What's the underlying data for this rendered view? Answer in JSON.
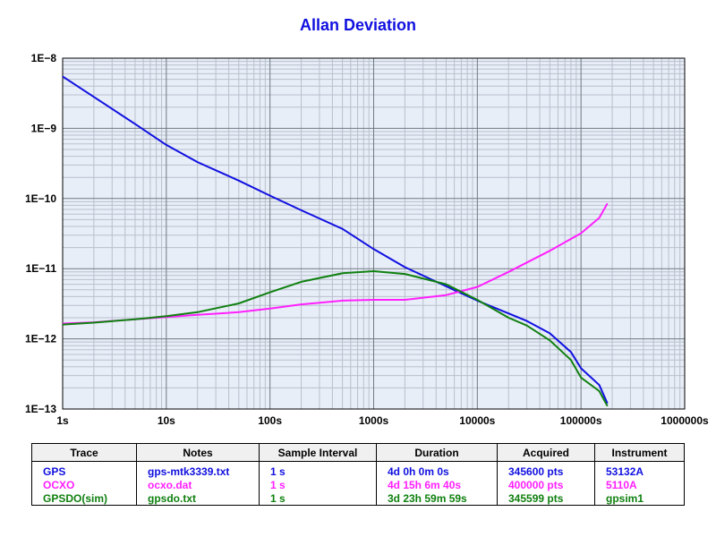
{
  "chart_data": {
    "type": "line",
    "title": "Allan Deviation",
    "xlabel": "",
    "ylabel": "",
    "x_scale": "log",
    "y_scale": "log",
    "xlim": [
      1,
      1000000
    ],
    "ylim": [
      1e-13,
      1e-08
    ],
    "grid": true,
    "x_ticks": [
      "1s",
      "10s",
      "100s",
      "1000s",
      "10000s",
      "100000s",
      "1000000s"
    ],
    "y_ticks": [
      "1E−13",
      "1E−12",
      "1E−11",
      "1E−10",
      "1E−9",
      "1E−8"
    ],
    "series": [
      {
        "name": "GPS",
        "color": "#1010e0",
        "x": [
          1,
          2,
          5,
          10,
          20,
          50,
          100,
          200,
          500,
          1000,
          2000,
          5000,
          10000,
          20000,
          30000,
          50000,
          80000,
          100000,
          150000,
          180000
        ],
        "y": [
          5.5e-09,
          2.8e-09,
          1.15e-09,
          5.8e-10,
          3.3e-10,
          1.8e-10,
          1.1e-10,
          6.8e-11,
          3.7e-11,
          1.9e-11,
          1.05e-11,
          5.6e-12,
          3.5e-12,
          2.3e-12,
          1.8e-12,
          1.2e-12,
          6.5e-13,
          3.8e-13,
          2.2e-13,
          1.2e-13
        ]
      },
      {
        "name": "OCXO",
        "color": "#ff20ff",
        "x": [
          1,
          2,
          5,
          10,
          20,
          50,
          100,
          200,
          500,
          1000,
          2000,
          5000,
          10000,
          20000,
          50000,
          100000,
          150000,
          180000
        ],
        "y": [
          1.65e-12,
          1.72e-12,
          1.9e-12,
          2.05e-12,
          2.2e-12,
          2.4e-12,
          2.7e-12,
          3.1e-12,
          3.5e-12,
          3.6e-12,
          3.6e-12,
          4.2e-12,
          5.5e-12,
          9e-12,
          1.8e-11,
          3.2e-11,
          5.3e-11,
          8.5e-11
        ]
      },
      {
        "name": "GPSDO(sim)",
        "color": "#108010",
        "x": [
          1,
          2,
          5,
          10,
          20,
          50,
          100,
          200,
          500,
          1000,
          2000,
          5000,
          10000,
          20000,
          30000,
          50000,
          80000,
          100000,
          150000,
          180000
        ],
        "y": [
          1.6e-12,
          1.7e-12,
          1.9e-12,
          2.1e-12,
          2.4e-12,
          3.2e-12,
          4.6e-12,
          6.5e-12,
          8.6e-12,
          9.2e-12,
          8.4e-12,
          6e-12,
          3.6e-12,
          2e-12,
          1.55e-12,
          9.5e-13,
          5e-13,
          2.8e-13,
          1.8e-13,
          1.1e-13
        ]
      }
    ]
  },
  "table": {
    "headers": [
      "Trace",
      "Notes",
      "Sample Interval",
      "Duration",
      "Acquired",
      "Instrument"
    ],
    "rows": [
      {
        "color": "#1010e0",
        "cells": [
          "GPS",
          "gps-mtk3339.txt",
          "1 s",
          "4d 0h 0m 0s",
          "345600 pts",
          "53132A"
        ]
      },
      {
        "color": "#ff20ff",
        "cells": [
          "OCXO",
          "ocxo.dat",
          "1 s",
          "4d 15h 6m 40s",
          "400000 pts",
          "5110A"
        ]
      },
      {
        "color": "#108010",
        "cells": [
          "GPSDO(sim)",
          "gpsdo.txt",
          "1 s",
          "3d 23h 59m 59s",
          "345599 pts",
          "gpsim1"
        ]
      }
    ]
  }
}
